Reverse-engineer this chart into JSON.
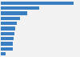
{
  "values": [
    100,
    53,
    36,
    27,
    22,
    20,
    19,
    18,
    17,
    16,
    7
  ],
  "bar_color": "#3a7fc1",
  "background_color": "#f2f2f2",
  "grid_color": "#ffffff",
  "bar_height": 0.72,
  "figsize": [
    1.0,
    0.71
  ],
  "dpi": 100,
  "xlim_max": 108
}
